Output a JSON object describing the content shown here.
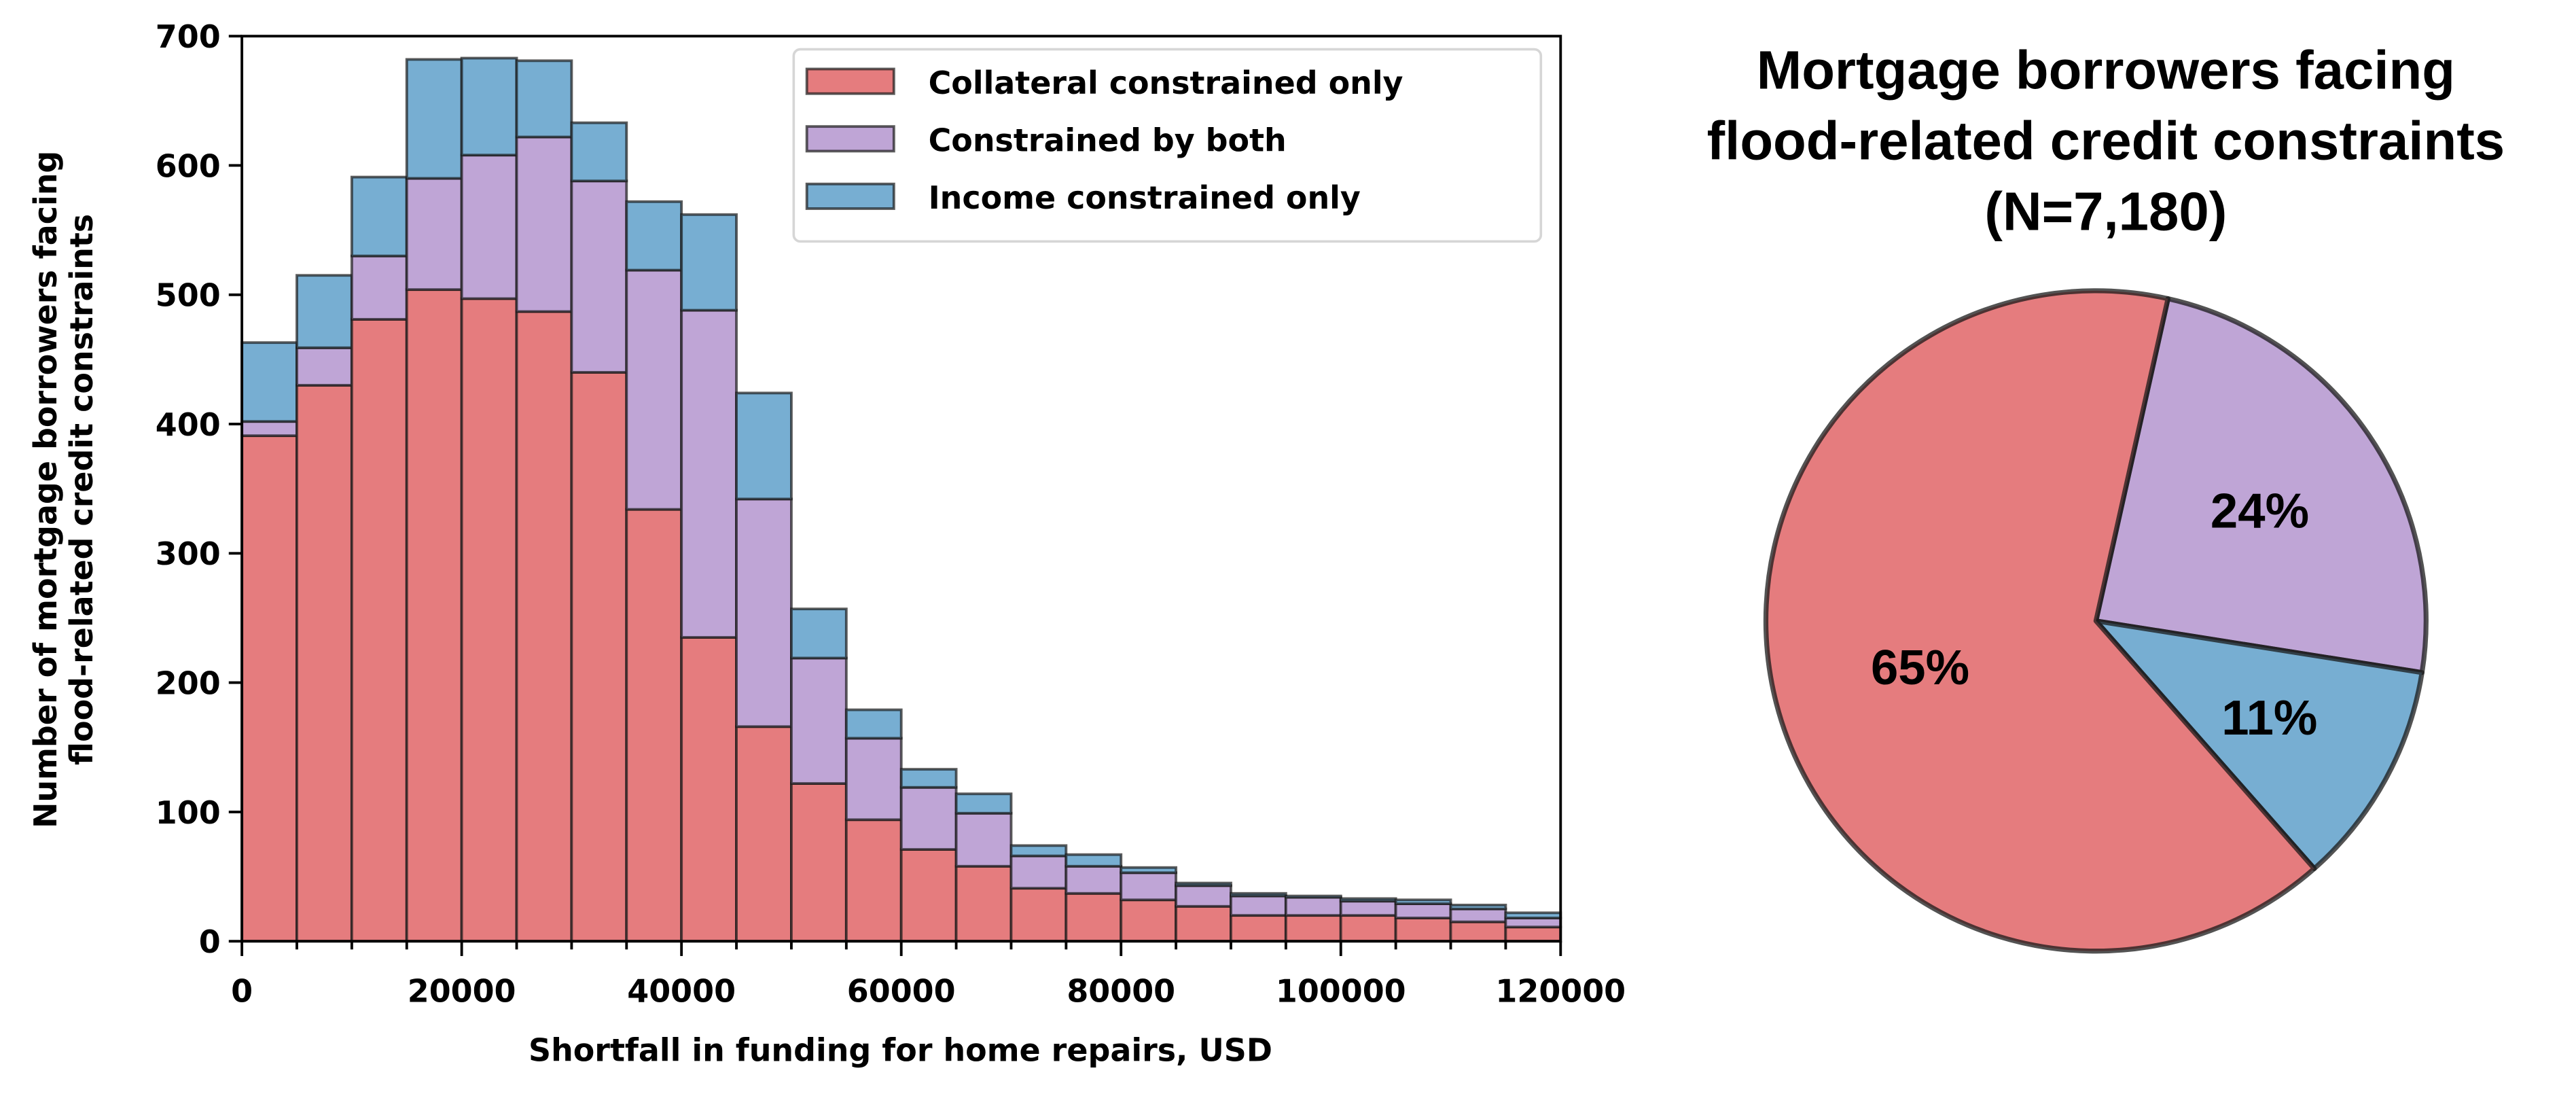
{
  "chart_data": [
    {
      "type": "bar",
      "stacked": true,
      "xlabel": "Shortfall in funding for home repairs, USD",
      "ylabel_lines": [
        "Number of mortgage borrowers facing",
        "flood-related credit constraints"
      ],
      "xlim": [
        0,
        120000
      ],
      "ylim": [
        0,
        700
      ],
      "bin_width": 5000,
      "bin_starts": [
        0,
        5000,
        10000,
        15000,
        20000,
        25000,
        30000,
        35000,
        40000,
        45000,
        50000,
        55000,
        60000,
        65000,
        70000,
        75000,
        80000,
        85000,
        90000,
        95000,
        100000,
        105000,
        110000,
        115000
      ],
      "xticks": [
        0,
        20000,
        40000,
        60000,
        80000,
        100000,
        120000
      ],
      "xtick_labels": [
        "0",
        "20000",
        "40000",
        "60000",
        "80000",
        "100000",
        "120000"
      ],
      "yticks": [
        0,
        100,
        200,
        300,
        400,
        500,
        600,
        700
      ],
      "ytick_labels": [
        "0",
        "100",
        "200",
        "300",
        "400",
        "500",
        "600",
        "700"
      ],
      "grid": false,
      "legend_position": "top-right",
      "series": [
        {
          "name": "Collateral constrained only",
          "color": "#e57c7e",
          "values": [
            391,
            430,
            481,
            504,
            497,
            487,
            440,
            334,
            235,
            166,
            122,
            94,
            71,
            58,
            41,
            37,
            32,
            27,
            20,
            20,
            20,
            18,
            15,
            11
          ]
        },
        {
          "name": "Constrained by both",
          "color": "#bfa5d6",
          "values": [
            11,
            29,
            49,
            86,
            111,
            135,
            148,
            185,
            253,
            176,
            97,
            63,
            48,
            41,
            25,
            21,
            21,
            16,
            15,
            14,
            11,
            11,
            10,
            7
          ]
        },
        {
          "name": "Income constrained only",
          "color": "#77aed2",
          "values": [
            61,
            56,
            61,
            92,
            75,
            59,
            45,
            53,
            74,
            82,
            38,
            22,
            14,
            15,
            8,
            9,
            4,
            2,
            2,
            1,
            2,
            3,
            3,
            4
          ]
        }
      ]
    },
    {
      "type": "pie",
      "title_lines": [
        "Mortgage borrowers facing",
        "flood-related credit constraints",
        "(N=7,180)"
      ],
      "slices": [
        {
          "label": "65%",
          "value": 65,
          "color": "#e57c7e",
          "category": "Collateral constrained only"
        },
        {
          "label": "24%",
          "value": 24,
          "color": "#bfa5d6",
          "category": "Constrained by both"
        },
        {
          "label": "11%",
          "value": 11,
          "color": "#77aed2",
          "category": "Income constrained only"
        }
      ]
    }
  ]
}
